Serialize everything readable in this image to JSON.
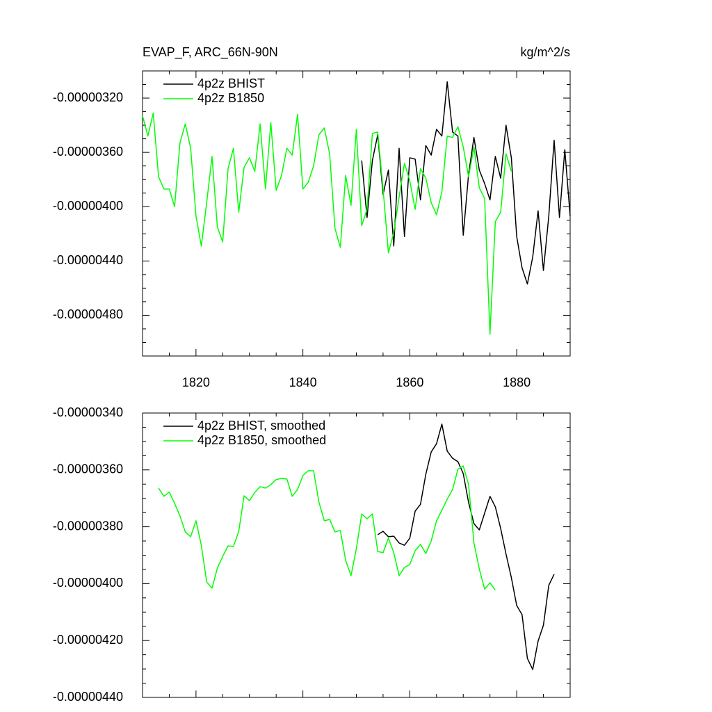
{
  "chart_data": [
    {
      "type": "line",
      "title": "EVAP_F, ARC_66N-90N",
      "units": "kg/m^2/s",
      "xlim": [
        1810,
        1890
      ],
      "xticks": [
        1820,
        1840,
        1860,
        1880
      ],
      "show_xtick_labels": true,
      "ylim": [
        -5.1e-06,
        -3e-06
      ],
      "yticks": [
        {
          "value": -3.2e-06,
          "label": "-0.00000320"
        },
        {
          "value": -3.6e-06,
          "label": "-0.00000360"
        },
        {
          "value": -4e-06,
          "label": "-0.00000400"
        },
        {
          "value": -4.4e-06,
          "label": "-0.00000440"
        },
        {
          "value": -4.8e-06,
          "label": "-0.00000480"
        }
      ],
      "legend": "top-left",
      "series": [
        {
          "name": "4p2z BHIST",
          "color": "#000000",
          "x": [
            1851,
            1852,
            1853,
            1854,
            1855,
            1856,
            1857,
            1858,
            1859,
            1860,
            1861,
            1862,
            1863,
            1864,
            1865,
            1866,
            1867,
            1868,
            1869,
            1870,
            1871,
            1872,
            1873,
            1874,
            1875,
            1876,
            1877,
            1878,
            1879,
            1880,
            1881,
            1882,
            1883,
            1884,
            1885,
            1886,
            1887,
            1888,
            1889,
            1890
          ],
          "values": [
            -3.66e-06,
            -4.08e-06,
            -3.66e-06,
            -3.47e-06,
            -3.91e-06,
            -3.73e-06,
            -4.29e-06,
            -3.57e-06,
            -4.22e-06,
            -3.64e-06,
            -3.65e-06,
            -3.95e-06,
            -3.55e-06,
            -3.62e-06,
            -3.43e-06,
            -3.48e-06,
            -3.08e-06,
            -3.45e-06,
            -3.48e-06,
            -4.21e-06,
            -3.76e-06,
            -3.49e-06,
            -3.73e-06,
            -3.83e-06,
            -3.95e-06,
            -3.63e-06,
            -3.79e-06,
            -3.4e-06,
            -3.64e-06,
            -4.22e-06,
            -4.45e-06,
            -4.57e-06,
            -4.37e-06,
            -4.03e-06,
            -4.47e-06,
            -4.07e-06,
            -3.51e-06,
            -4.08e-06,
            -3.58e-06,
            -4.07e-06
          ]
        },
        {
          "name": "4p2z B1850",
          "color": "#00ff00",
          "x": [
            1810,
            1811,
            1812,
            1813,
            1814,
            1815,
            1816,
            1817,
            1818,
            1819,
            1820,
            1821,
            1822,
            1823,
            1824,
            1825,
            1826,
            1827,
            1828,
            1829,
            1830,
            1831,
            1832,
            1833,
            1834,
            1835,
            1836,
            1837,
            1838,
            1839,
            1840,
            1841,
            1842,
            1843,
            1844,
            1845,
            1846,
            1847,
            1848,
            1849,
            1850,
            1851,
            1852,
            1853,
            1854,
            1855,
            1856,
            1857,
            1858,
            1859,
            1860,
            1861,
            1862,
            1863,
            1864,
            1865,
            1866,
            1867,
            1868,
            1869,
            1870,
            1871,
            1872,
            1873,
            1874,
            1875,
            1876,
            1877,
            1878,
            1879
          ],
          "values": [
            -3.33e-06,
            -3.48e-06,
            -3.31e-06,
            -3.78e-06,
            -3.87e-06,
            -3.87e-06,
            -4e-06,
            -3.53e-06,
            -3.39e-06,
            -3.57e-06,
            -4.07e-06,
            -4.29e-06,
            -3.97e-06,
            -3.63e-06,
            -4.15e-06,
            -4.26e-06,
            -3.72e-06,
            -3.57e-06,
            -4.04e-06,
            -3.71e-06,
            -3.64e-06,
            -3.74e-06,
            -3.39e-06,
            -3.87e-06,
            -3.38e-06,
            -3.88e-06,
            -3.77e-06,
            -3.57e-06,
            -3.62e-06,
            -3.32e-06,
            -3.87e-06,
            -3.82e-06,
            -3.7e-06,
            -3.47e-06,
            -3.42e-06,
            -3.61e-06,
            -4.16e-06,
            -4.3e-06,
            -3.77e-06,
            -3.99e-06,
            -3.43e-06,
            -4.14e-06,
            -4.02e-06,
            -3.46e-06,
            -3.45e-06,
            -3.87e-06,
            -4.34e-06,
            -4.19e-06,
            -3.93e-06,
            -3.68e-06,
            -3.81e-06,
            -4.02e-06,
            -3.72e-06,
            -3.79e-06,
            -3.97e-06,
            -4.06e-06,
            -3.89e-06,
            -3.48e-06,
            -3.49e-06,
            -3.41e-06,
            -3.56e-06,
            -3.78e-06,
            -3.56e-06,
            -3.86e-06,
            -3.94e-06,
            -4.94e-06,
            -4.11e-06,
            -4.04e-06,
            -3.61e-06,
            -3.74e-06
          ]
        }
      ]
    },
    {
      "type": "line",
      "xlim": [
        1810,
        1890
      ],
      "xticks": [
        1820,
        1840,
        1860,
        1880
      ],
      "show_xtick_labels": false,
      "ylim": [
        -4.4e-06,
        -3.4e-06
      ],
      "yticks": [
        {
          "value": -3.4e-06,
          "label": "-0.00000340"
        },
        {
          "value": -3.6e-06,
          "label": "-0.00000360"
        },
        {
          "value": -3.8e-06,
          "label": "-0.00000380"
        },
        {
          "value": -4e-06,
          "label": "-0.00000400"
        },
        {
          "value": -4.2e-06,
          "label": "-0.00000420"
        },
        {
          "value": -4.4e-06,
          "label": "-0.00000440"
        }
      ],
      "legend": "top-left",
      "series": [
        {
          "name": "4p2z BHIST, smoothed",
          "color": "#000000",
          "x": [
            1854,
            1855,
            1856,
            1857,
            1858,
            1859,
            1860,
            1861,
            1862,
            1863,
            1864,
            1865,
            1866,
            1867,
            1868,
            1869,
            1870,
            1871,
            1872,
            1873,
            1874,
            1875,
            1876,
            1877,
            1878,
            1879,
            1880,
            1881,
            1882,
            1883,
            1884,
            1885,
            1886,
            1887
          ],
          "values": [
            -3.828e-06,
            -3.816e-06,
            -3.835e-06,
            -3.833e-06,
            -3.857e-06,
            -3.865e-06,
            -3.84e-06,
            -3.745e-06,
            -3.721e-06,
            -3.615e-06,
            -3.537e-06,
            -3.508e-06,
            -3.439e-06,
            -3.534e-06,
            -3.559e-06,
            -3.571e-06,
            -3.613e-06,
            -3.715e-06,
            -3.789e-06,
            -3.811e-06,
            -3.752e-06,
            -3.693e-06,
            -3.73e-06,
            -3.806e-06,
            -3.896e-06,
            -3.979e-06,
            -4.077e-06,
            -4.109e-06,
            -4.263e-06,
            -4.302e-06,
            -4.202e-06,
            -4.146e-06,
            -4.006e-06,
            -3.967e-06
          ]
        },
        {
          "name": "4p2z B1850, smoothed",
          "color": "#00ff00",
          "x": [
            1813,
            1814,
            1815,
            1816,
            1817,
            1818,
            1819,
            1820,
            1821,
            1822,
            1823,
            1824,
            1825,
            1826,
            1827,
            1828,
            1829,
            1830,
            1831,
            1832,
            1833,
            1834,
            1835,
            1836,
            1837,
            1838,
            1839,
            1840,
            1841,
            1842,
            1843,
            1844,
            1845,
            1846,
            1847,
            1848,
            1849,
            1850,
            1851,
            1852,
            1853,
            1854,
            1855,
            1856,
            1857,
            1858,
            1859,
            1860,
            1861,
            1862,
            1863,
            1864,
            1865,
            1866,
            1867,
            1868,
            1869,
            1870,
            1871,
            1872,
            1873,
            1874,
            1875,
            1876
          ],
          "values": [
            -3.664e-06,
            -3.693e-06,
            -3.678e-06,
            -3.718e-06,
            -3.762e-06,
            -3.818e-06,
            -3.835e-06,
            -3.779e-06,
            -3.865e-06,
            -3.994e-06,
            -4.016e-06,
            -3.945e-06,
            -3.904e-06,
            -3.867e-06,
            -3.869e-06,
            -3.816e-06,
            -3.691e-06,
            -3.708e-06,
            -3.679e-06,
            -3.659e-06,
            -3.664e-06,
            -3.652e-06,
            -3.634e-06,
            -3.63e-06,
            -3.632e-06,
            -3.693e-06,
            -3.669e-06,
            -3.62e-06,
            -3.603e-06,
            -3.603e-06,
            -3.713e-06,
            -3.779e-06,
            -3.774e-06,
            -3.818e-06,
            -3.813e-06,
            -3.918e-06,
            -3.972e-06,
            -3.877e-06,
            -3.755e-06,
            -3.772e-06,
            -3.755e-06,
            -3.887e-06,
            -3.891e-06,
            -3.84e-06,
            -3.891e-06,
            -3.972e-06,
            -3.943e-06,
            -3.933e-06,
            -3.884e-06,
            -3.862e-06,
            -3.894e-06,
            -3.85e-06,
            -3.779e-06,
            -3.742e-06,
            -3.703e-06,
            -3.669e-06,
            -3.598e-06,
            -3.586e-06,
            -3.652e-06,
            -3.857e-06,
            -3.948e-06,
            -4.019e-06,
            -3.997e-06,
            -4.023e-06
          ]
        }
      ]
    }
  ]
}
